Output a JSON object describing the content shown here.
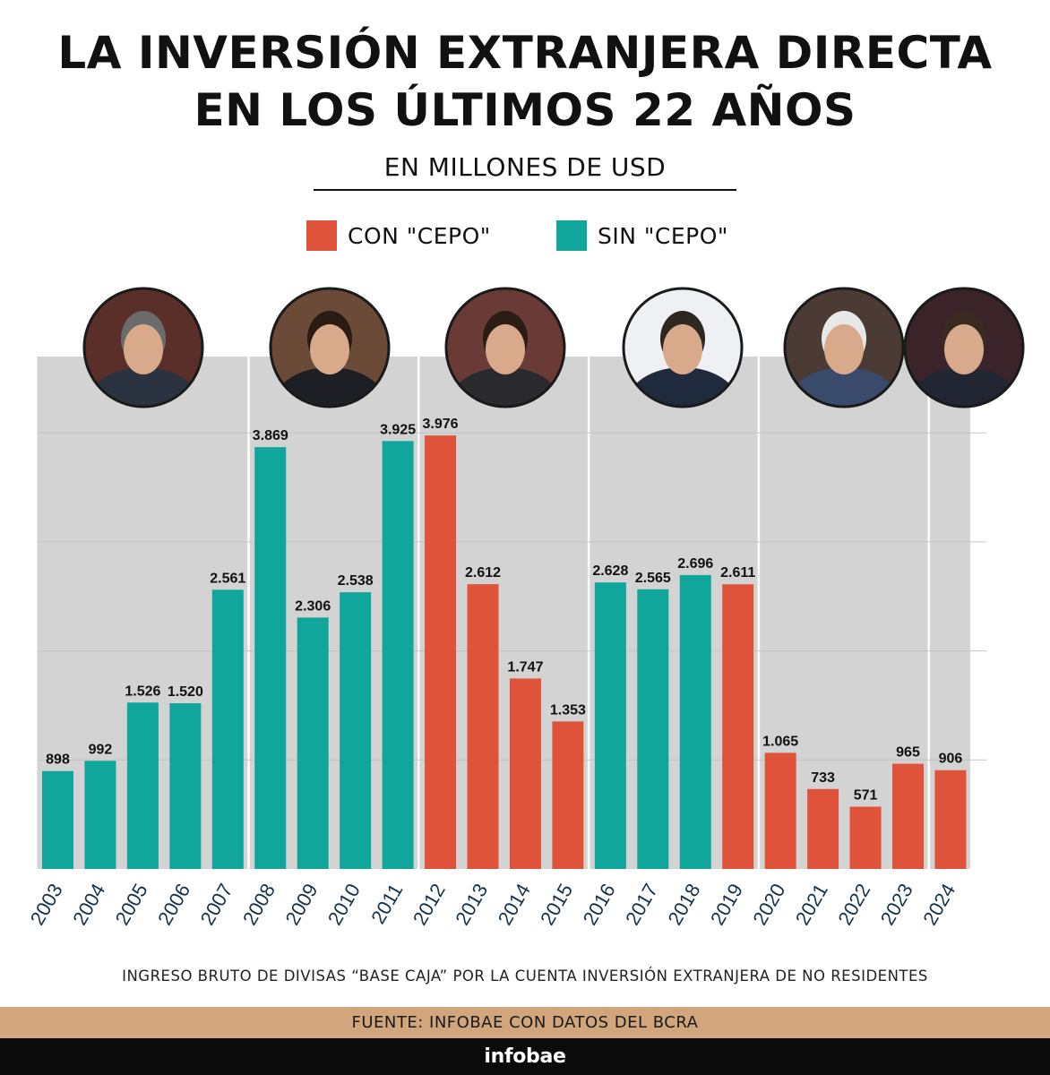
{
  "header": {
    "title_line1": "LA INVERSIÓN EXTRANJERA DIRECTA",
    "title_line2": "EN LOS ÚLTIMOS 22 AÑOS",
    "subtitle": "EN MILLONES DE USD"
  },
  "legend": [
    {
      "label": "CON \"CEPO\"",
      "color": "#de533a"
    },
    {
      "label": "SIN \"CEPO\"",
      "color": "#10a69c"
    }
  ],
  "footer": {
    "note": "INGRESO BRUTO DE DIVISAS “BASE CAJA” POR LA CUENTA INVERSIÓN EXTRANJERA DE NO RESIDENTES",
    "source": "FUENTE: INFOBAE CON DATOS DEL BCRA",
    "brand": "infobae"
  },
  "colors": {
    "con_cepo": "#de533a",
    "sin_cepo": "#10a69c",
    "panel": "#d3d3d3",
    "source_bar": "#d2a67c",
    "brand_bar": "#0b0b0b"
  },
  "chart_data": {
    "type": "bar",
    "title": "LA INVERSIÓN EXTRANJERA DIRECTA EN LOS ÚLTIMOS 22 AÑOS",
    "subtitle": "EN MILLONES DE USD",
    "xlabel": "",
    "ylabel": "",
    "ylim": [
      0,
      4700
    ],
    "grid": true,
    "legend_position": "top-center",
    "categories": [
      "2003",
      "2004",
      "2005",
      "2006",
      "2007",
      "2008",
      "2009",
      "2010",
      "2011",
      "2012",
      "2013",
      "2014",
      "2015",
      "2016",
      "2017",
      "2018",
      "2019",
      "2020",
      "2021",
      "2022",
      "2023",
      "2024"
    ],
    "values": [
      898,
      992,
      1526,
      1520,
      2561,
      3869,
      2306,
      2538,
      3925,
      3976,
      2612,
      1747,
      1353,
      2628,
      2565,
      2696,
      2611,
      1065,
      733,
      571,
      965,
      906
    ],
    "value_labels": [
      "898",
      "992",
      "1.526",
      "1.520",
      "2.561",
      "3.869",
      "2.306",
      "2.538",
      "3.925",
      "3.976",
      "2.612",
      "1.747",
      "1.353",
      "2.628",
      "2.565",
      "2.696",
      "2.611",
      "1.065",
      "733",
      "571",
      "965",
      "906"
    ],
    "regime": [
      "sin",
      "sin",
      "sin",
      "sin",
      "sin",
      "sin",
      "sin",
      "sin",
      "sin",
      "con",
      "con",
      "con",
      "con",
      "sin",
      "sin",
      "sin",
      "con",
      "con",
      "con",
      "con",
      "con",
      "con"
    ],
    "periods": [
      {
        "first": "2003",
        "last": "2007",
        "portrait": "portrait-1"
      },
      {
        "first": "2008",
        "last": "2011",
        "portrait": "portrait-2"
      },
      {
        "first": "2012",
        "last": "2015",
        "portrait": "portrait-3"
      },
      {
        "first": "2016",
        "last": "2019",
        "portrait": "portrait-4"
      },
      {
        "first": "2020",
        "last": "2023",
        "portrait": "portrait-5"
      },
      {
        "first": "2024",
        "last": "2024",
        "portrait": "portrait-6"
      }
    ]
  }
}
